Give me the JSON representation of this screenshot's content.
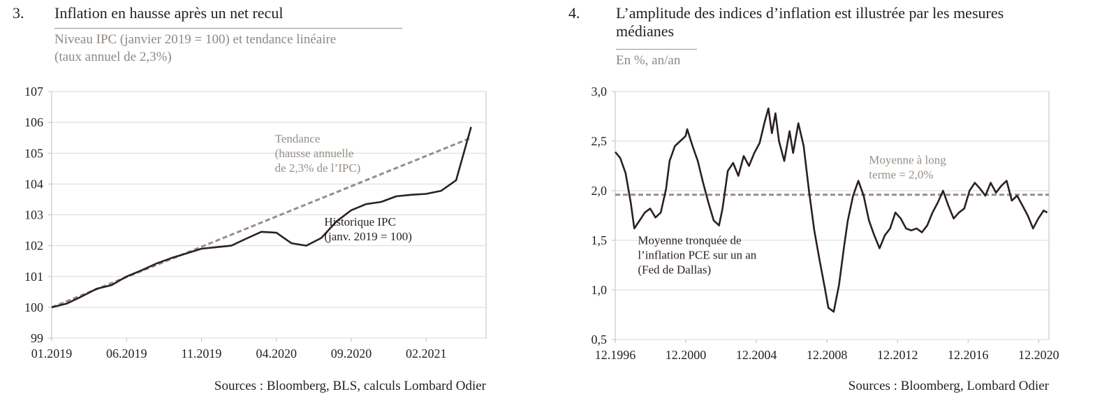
{
  "charts": [
    {
      "number": "3.",
      "title": "Inflation en hausse après un net recul",
      "subtitle_lines": [
        "Niveau IPC (janvier 2019 = 100) et tendance linéaire",
        "(taux annuel de 2,3%)"
      ],
      "source": "Sources : Bloomberg, BLS, calculs Lombard Odier"
    },
    {
      "number": "4.",
      "title_lines": [
        "L’amplitude des indices d’inflation est illustrée par les mesures",
        "médianes"
      ],
      "subtitle": "En %, an/an",
      "source": "Sources : Bloomberg, Lombard Odier"
    }
  ],
  "colors": {
    "series": "#2b1f22",
    "trend": "#978e87",
    "grid": "#d9d9d9",
    "axis": "#bdbdbd"
  },
  "chart_data": [
    {
      "type": "line",
      "ylim": [
        99,
        107
      ],
      "yticks": [
        "99",
        "100",
        "101",
        "102",
        "103",
        "104",
        "105",
        "106",
        "107"
      ],
      "xlim": [
        0,
        29
      ],
      "xticks": [
        {
          "x": 0,
          "label": "01.2019"
        },
        {
          "x": 5,
          "label": "06.2019"
        },
        {
          "x": 10,
          "label": "11.2019"
        },
        {
          "x": 15,
          "label": "04.2020"
        },
        {
          "x": 20,
          "label": "09.2020"
        },
        {
          "x": 25,
          "label": "02.2021"
        }
      ],
      "series": [
        {
          "style": "solid",
          "x": [
            0,
            1,
            2,
            3,
            4,
            5,
            6,
            7,
            8,
            9,
            10,
            11,
            12,
            13,
            14,
            15,
            16,
            17,
            18,
            19,
            20,
            21,
            22,
            23,
            24,
            25,
            26,
            27,
            28
          ],
          "y": [
            100.0,
            100.12,
            100.35,
            100.6,
            100.72,
            101.0,
            101.2,
            101.42,
            101.6,
            101.75,
            101.9,
            101.95,
            102.0,
            102.23,
            102.45,
            102.42,
            102.08,
            102.0,
            102.25,
            102.78,
            103.15,
            103.35,
            103.42,
            103.6,
            103.65,
            103.68,
            103.78,
            104.12,
            105.85
          ]
        },
        {
          "style": "dashed",
          "x": [
            0,
            28
          ],
          "y": [
            100.0,
            105.5
          ]
        }
      ],
      "annotations": [
        {
          "lines": [
            "Tendance",
            "(hausse annuelle",
            "de 2,3% de l’IPC)"
          ],
          "style": "trend",
          "x": 14.9,
          "y": 105.35
        },
        {
          "lines": [
            "Historique IPC",
            "(janv. 2019 = 100)"
          ],
          "style": "series",
          "x": 18.2,
          "y": 102.65
        }
      ]
    },
    {
      "type": "line",
      "ylim": [
        0.5,
        3.0
      ],
      "yticks": [
        "0,5",
        "1,0",
        "1,5",
        "2,0",
        "2,5",
        "3,0"
      ],
      "xlim": [
        1996.92,
        2021.5
      ],
      "xticks": [
        {
          "x": 1996.92,
          "label": "12.1996"
        },
        {
          "x": 2000.92,
          "label": "12.2000"
        },
        {
          "x": 2004.92,
          "label": "12.2004"
        },
        {
          "x": 2008.92,
          "label": "12.2008"
        },
        {
          "x": 2012.92,
          "label": "12.2012"
        },
        {
          "x": 2016.92,
          "label": "12.2016"
        },
        {
          "x": 2020.92,
          "label": "12.2020"
        }
      ],
      "series": [
        {
          "style": "solid",
          "x": [
            1996.92,
            1997.2,
            1997.5,
            1997.8,
            1998.0,
            1998.3,
            1998.6,
            1998.9,
            1999.2,
            1999.5,
            1999.8,
            2000.0,
            2000.3,
            2000.6,
            2000.9,
            2001.0,
            2001.3,
            2001.6,
            2001.9,
            2002.2,
            2002.5,
            2002.8,
            2003.0,
            2003.3,
            2003.6,
            2003.9,
            2004.2,
            2004.5,
            2004.8,
            2005.1,
            2005.4,
            2005.6,
            2005.8,
            2006.0,
            2006.2,
            2006.5,
            2006.8,
            2007.0,
            2007.3,
            2007.6,
            2007.9,
            2008.2,
            2008.5,
            2008.8,
            2009.0,
            2009.3,
            2009.6,
            2009.9,
            2010.1,
            2010.4,
            2010.7,
            2011.0,
            2011.3,
            2011.6,
            2011.9,
            2012.2,
            2012.5,
            2012.8,
            2013.1,
            2013.4,
            2013.7,
            2014.0,
            2014.3,
            2014.6,
            2014.9,
            2015.2,
            2015.5,
            2015.8,
            2016.1,
            2016.4,
            2016.7,
            2017.0,
            2017.3,
            2017.6,
            2017.9,
            2018.2,
            2018.5,
            2018.8,
            2019.1,
            2019.4,
            2019.7,
            2020.0,
            2020.3,
            2020.6,
            2020.9,
            2021.2,
            2021.4
          ],
          "y": [
            2.39,
            2.33,
            2.18,
            1.88,
            1.62,
            1.7,
            1.78,
            1.82,
            1.73,
            1.78,
            2.02,
            2.3,
            2.45,
            2.5,
            2.55,
            2.62,
            2.45,
            2.3,
            2.08,
            1.88,
            1.7,
            1.65,
            1.82,
            2.2,
            2.28,
            2.15,
            2.35,
            2.25,
            2.38,
            2.48,
            2.7,
            2.83,
            2.58,
            2.78,
            2.5,
            2.3,
            2.6,
            2.38,
            2.68,
            2.45,
            2.0,
            1.6,
            1.3,
            1.02,
            0.82,
            0.78,
            1.05,
            1.45,
            1.7,
            1.95,
            2.1,
            1.95,
            1.7,
            1.55,
            1.42,
            1.55,
            1.62,
            1.78,
            1.72,
            1.62,
            1.6,
            1.62,
            1.58,
            1.65,
            1.78,
            1.88,
            2.0,
            1.85,
            1.72,
            1.78,
            1.82,
            2.0,
            2.08,
            2.02,
            1.95,
            2.08,
            1.98,
            2.05,
            2.1,
            1.9,
            1.95,
            1.85,
            1.75,
            1.62,
            1.72,
            1.8,
            1.78
          ]
        },
        {
          "style": "dashed",
          "x": [
            1996.92,
            2021.5
          ],
          "y": [
            1.96,
            1.96
          ]
        }
      ],
      "annotations": [
        {
          "lines": [
            "Moyenne à long",
            "terme = 2,0%"
          ],
          "style": "trend",
          "x": 2011.3,
          "y": 2.27
        },
        {
          "lines": [
            "Moyenne tronquée de",
            "l’inflation PCE sur un an",
            "(Fed de Dallas)"
          ],
          "style": "series",
          "x": 1998.2,
          "y": 1.46
        }
      ]
    }
  ]
}
